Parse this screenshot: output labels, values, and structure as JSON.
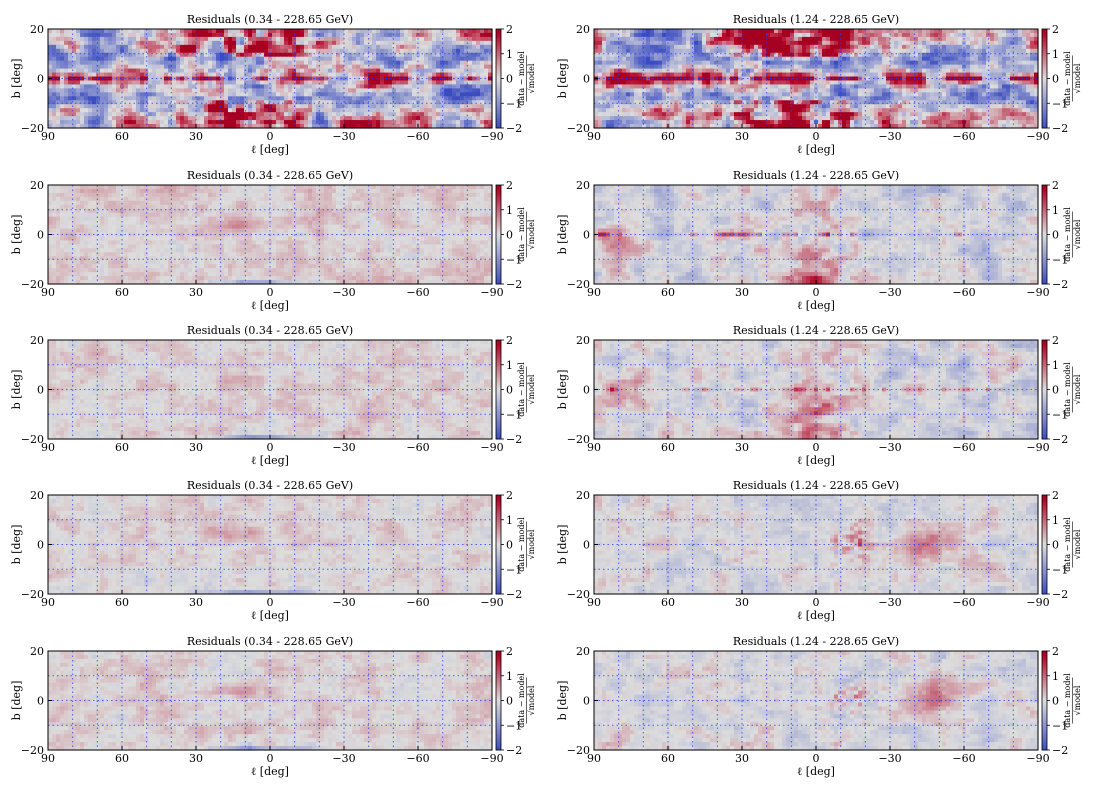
{
  "figure": {
    "rows": 5,
    "columns": 2,
    "grid_lines": "dotted blue",
    "colormap": {
      "name": "coolwarm",
      "low": "#3b4cc0",
      "mid": "#dddddd",
      "high": "#b40426",
      "saturated_high": "#a50021"
    }
  },
  "chart_data": [
    {
      "type": "heatmap",
      "title": "Residuals (0.34 - 228.65 GeV)",
      "xlabel": "ℓ [deg]",
      "ylabel": "b [deg]",
      "xlim": [
        90,
        -90
      ],
      "ylim": [
        -20,
        20
      ],
      "xticks": [
        90,
        60,
        30,
        0,
        -30,
        -60,
        -90
      ],
      "yticks": [
        -20,
        0,
        20
      ],
      "colorbar": {
        "label_num": "data − model",
        "label_den": "√model",
        "range": [
          -2,
          2
        ],
        "ticks": [
          -2,
          -1,
          0,
          1,
          2
        ]
      },
      "grid": true,
      "pattern": "strong_both",
      "mean": 0.1,
      "amplitude": 2.6
    },
    {
      "type": "heatmap",
      "title": "Residuals (1.24 - 228.65 GeV)",
      "xlabel": "ℓ [deg]",
      "ylabel": "b [deg]",
      "xlim": [
        90,
        -90
      ],
      "ylim": [
        -20,
        20
      ],
      "xticks": [
        90,
        60,
        30,
        0,
        -30,
        -60,
        -90
      ],
      "yticks": [
        -20,
        0,
        20
      ],
      "colorbar": {
        "label_num": "data − model",
        "label_den": "√model",
        "range": [
          -2,
          2
        ],
        "ticks": [
          -2,
          -1,
          0,
          1,
          2
        ]
      },
      "grid": true,
      "pattern": "strong_both",
      "mean": 0.1,
      "amplitude": 2.6
    },
    {
      "type": "heatmap",
      "title": "Residuals (0.34 - 228.65 GeV)",
      "xlabel": "ℓ [deg]",
      "ylabel": "b [deg]",
      "xlim": [
        90,
        -90
      ],
      "ylim": [
        -20,
        20
      ],
      "xticks": [
        90,
        60,
        30,
        0,
        -30,
        -60,
        -90
      ],
      "yticks": [
        -20,
        0,
        20
      ],
      "colorbar": {
        "label_num": "data − model",
        "label_den": "√model",
        "range": [
          -2,
          2
        ],
        "ticks": [
          -2,
          -1,
          0,
          1,
          2
        ]
      },
      "grid": true,
      "pattern": "faint",
      "mean": 0.15,
      "amplitude": 0.45
    },
    {
      "type": "heatmap",
      "title": "Residuals (1.24 - 228.65 GeV)",
      "xlabel": "ℓ [deg]",
      "ylabel": "b [deg]",
      "xlim": [
        90,
        -90
      ],
      "ylim": [
        -20,
        20
      ],
      "xticks": [
        90,
        60,
        30,
        0,
        -30,
        -60,
        -90
      ],
      "yticks": [
        -20,
        0,
        20
      ],
      "colorbar": {
        "label_num": "data − model",
        "label_den": "√model",
        "range": [
          -2,
          2
        ],
        "ticks": [
          -2,
          -1,
          0,
          1,
          2
        ]
      },
      "grid": true,
      "pattern": "center_excess",
      "mean": -0.15,
      "amplitude": 0.8
    },
    {
      "type": "heatmap",
      "title": "Residuals (0.34 - 228.65 GeV)",
      "xlabel": "ℓ [deg]",
      "ylabel": "b [deg]",
      "xlim": [
        90,
        -90
      ],
      "ylim": [
        -20,
        20
      ],
      "xticks": [
        90,
        60,
        30,
        0,
        -30,
        -60,
        -90
      ],
      "yticks": [
        -20,
        0,
        20
      ],
      "colorbar": {
        "label_num": "data − model",
        "label_den": "√model",
        "range": [
          -2,
          2
        ],
        "ticks": [
          -2,
          -1,
          0,
          1,
          2
        ]
      },
      "grid": true,
      "pattern": "faint",
      "mean": 0.12,
      "amplitude": 0.42
    },
    {
      "type": "heatmap",
      "title": "Residuals (1.24 - 228.65 GeV)",
      "xlabel": "ℓ [deg]",
      "ylabel": "b [deg]",
      "xlim": [
        90,
        -90
      ],
      "ylim": [
        -20,
        20
      ],
      "xticks": [
        90,
        60,
        30,
        0,
        -30,
        -60,
        -90
      ],
      "yticks": [
        -20,
        0,
        20
      ],
      "colorbar": {
        "label_num": "data − model",
        "label_den": "√model",
        "range": [
          -2,
          2
        ],
        "ticks": [
          -2,
          -1,
          0,
          1,
          2
        ]
      },
      "grid": true,
      "pattern": "center_excess",
      "mean": -0.12,
      "amplitude": 0.75
    },
    {
      "type": "heatmap",
      "title": "Residuals (0.34 - 228.65 GeV)",
      "xlabel": "ℓ [deg]",
      "ylabel": "b [deg]",
      "xlim": [
        90,
        -90
      ],
      "ylim": [
        -20,
        20
      ],
      "xticks": [
        90,
        60,
        30,
        0,
        -30,
        -60,
        -90
      ],
      "yticks": [
        -20,
        0,
        20
      ],
      "colorbar": {
        "label_num": "data − model",
        "label_den": "√model",
        "range": [
          -2,
          2
        ],
        "ticks": [
          -2,
          -1,
          0,
          1,
          2
        ]
      },
      "grid": true,
      "pattern": "faint",
      "mean": 0.1,
      "amplitude": 0.42
    },
    {
      "type": "heatmap",
      "title": "Residuals (1.24 - 228.65 GeV)",
      "xlabel": "ℓ [deg]",
      "ylabel": "b [deg]",
      "xlim": [
        90,
        -90
      ],
      "ylim": [
        -20,
        20
      ],
      "xticks": [
        90,
        60,
        30,
        0,
        -30,
        -60,
        -90
      ],
      "yticks": [
        -20,
        0,
        20
      ],
      "colorbar": {
        "label_num": "data − model",
        "label_den": "√model",
        "range": [
          -2,
          2
        ],
        "ticks": [
          -2,
          -1,
          0,
          1,
          2
        ]
      },
      "grid": true,
      "pattern": "spots",
      "mean": -0.05,
      "amplitude": 0.6
    },
    {
      "type": "heatmap",
      "title": "Residuals (0.34 - 228.65 GeV)",
      "xlabel": "ℓ [deg]",
      "ylabel": "b [deg]",
      "xlim": [
        90,
        -90
      ],
      "ylim": [
        -20,
        20
      ],
      "xticks": [
        90,
        60,
        30,
        0,
        -30,
        -60,
        -90
      ],
      "yticks": [
        -20,
        0,
        20
      ],
      "colorbar": {
        "label_num": "data − model",
        "label_den": "√model",
        "range": [
          -2,
          2
        ],
        "ticks": [
          -2,
          -1,
          0,
          1,
          2
        ]
      },
      "grid": true,
      "pattern": "faint",
      "mean": 0.1,
      "amplitude": 0.42
    },
    {
      "type": "heatmap",
      "title": "Residuals (1.24 - 228.65 GeV)",
      "xlabel": "ℓ [deg]",
      "ylabel": "b [deg]",
      "xlim": [
        90,
        -90
      ],
      "ylim": [
        -20,
        20
      ],
      "xticks": [
        90,
        60,
        30,
        0,
        -30,
        -60,
        -90
      ],
      "yticks": [
        -20,
        0,
        20
      ],
      "colorbar": {
        "label_num": "data − model",
        "label_den": "√model",
        "range": [
          -2,
          2
        ],
        "ticks": [
          -2,
          -1,
          0,
          1,
          2
        ]
      },
      "grid": true,
      "pattern": "spots",
      "mean": -0.05,
      "amplitude": 0.6
    }
  ]
}
